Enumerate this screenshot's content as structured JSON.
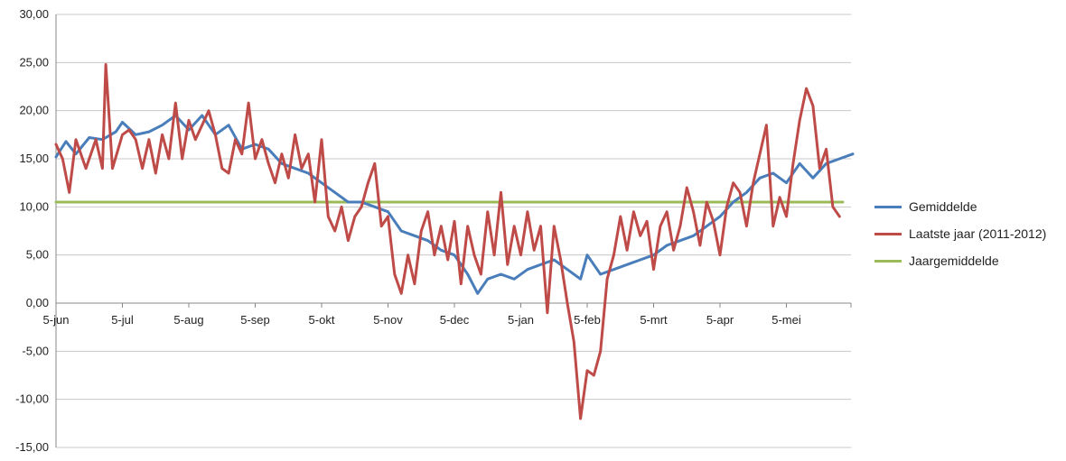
{
  "chart_data": {
    "type": "line",
    "categories": [
      "5-jun",
      "5-jul",
      "5-aug",
      "5-sep",
      "5-okt",
      "5-nov",
      "5-dec",
      "5-jan",
      "5-feb",
      "5-mrt",
      "5-apr",
      "5-mei"
    ],
    "y_ticks": [
      "30,00",
      "25,00",
      "20,00",
      "15,00",
      "10,00",
      "5,00",
      "0,00",
      "-5,00",
      "-10,00",
      "-15,00"
    ],
    "ylim": [
      -15,
      30
    ],
    "grid": true,
    "legend_position": "right",
    "series": [
      {
        "name": "Gemiddelde",
        "color": "#4a7ebb",
        "points": [
          [
            0,
            15.2
          ],
          [
            0.15,
            16.8
          ],
          [
            0.3,
            15.5
          ],
          [
            0.5,
            17.2
          ],
          [
            0.7,
            17.0
          ],
          [
            0.9,
            17.8
          ],
          [
            1.0,
            18.8
          ],
          [
            1.2,
            17.5
          ],
          [
            1.4,
            17.8
          ],
          [
            1.6,
            18.5
          ],
          [
            1.8,
            19.5
          ],
          [
            2.0,
            18.0
          ],
          [
            2.2,
            19.5
          ],
          [
            2.4,
            17.5
          ],
          [
            2.6,
            18.5
          ],
          [
            2.8,
            16.0
          ],
          [
            3.0,
            16.5
          ],
          [
            3.2,
            16.0
          ],
          [
            3.4,
            14.5
          ],
          [
            3.6,
            14.0
          ],
          [
            3.8,
            13.5
          ],
          [
            4.0,
            12.5
          ],
          [
            4.2,
            11.5
          ],
          [
            4.4,
            10.5
          ],
          [
            4.6,
            10.5
          ],
          [
            4.8,
            10.0
          ],
          [
            5.0,
            9.5
          ],
          [
            5.2,
            7.5
          ],
          [
            5.4,
            7.0
          ],
          [
            5.6,
            6.5
          ],
          [
            5.8,
            5.5
          ],
          [
            6.0,
            5.0
          ],
          [
            6.2,
            3.0
          ],
          [
            6.35,
            1.0
          ],
          [
            6.5,
            2.5
          ],
          [
            6.7,
            3.0
          ],
          [
            6.9,
            2.5
          ],
          [
            7.1,
            3.5
          ],
          [
            7.3,
            4.0
          ],
          [
            7.5,
            4.5
          ],
          [
            7.7,
            3.5
          ],
          [
            7.9,
            2.5
          ],
          [
            8.0,
            5.0
          ],
          [
            8.2,
            3.0
          ],
          [
            8.4,
            3.5
          ],
          [
            8.6,
            4.0
          ],
          [
            8.8,
            4.5
          ],
          [
            9.0,
            5.0
          ],
          [
            9.2,
            6.0
          ],
          [
            9.4,
            6.5
          ],
          [
            9.6,
            7.0
          ],
          [
            9.8,
            8.0
          ],
          [
            10.0,
            9.0
          ],
          [
            10.2,
            10.5
          ],
          [
            10.4,
            11.5
          ],
          [
            10.6,
            13.0
          ],
          [
            10.8,
            13.5
          ],
          [
            11.0,
            12.5
          ],
          [
            11.2,
            14.5
          ],
          [
            11.4,
            13.0
          ],
          [
            11.6,
            14.5
          ],
          [
            11.8,
            15.0
          ],
          [
            12.0,
            15.5
          ]
        ]
      },
      {
        "name": "Laatste jaar (2011-2012)",
        "color": "#be4b48",
        "points": [
          [
            0,
            16.5
          ],
          [
            0.1,
            15.0
          ],
          [
            0.2,
            11.5
          ],
          [
            0.3,
            17.0
          ],
          [
            0.45,
            14.0
          ],
          [
            0.6,
            17.0
          ],
          [
            0.7,
            14.0
          ],
          [
            0.75,
            24.8
          ],
          [
            0.85,
            14.0
          ],
          [
            1.0,
            17.5
          ],
          [
            1.1,
            18.0
          ],
          [
            1.2,
            17.0
          ],
          [
            1.3,
            14.0
          ],
          [
            1.4,
            17.0
          ],
          [
            1.5,
            13.5
          ],
          [
            1.6,
            17.5
          ],
          [
            1.7,
            15.0
          ],
          [
            1.8,
            20.8
          ],
          [
            1.9,
            15.0
          ],
          [
            2.0,
            19.0
          ],
          [
            2.1,
            17.0
          ],
          [
            2.2,
            18.5
          ],
          [
            2.3,
            20.0
          ],
          [
            2.4,
            17.5
          ],
          [
            2.5,
            14.0
          ],
          [
            2.6,
            13.5
          ],
          [
            2.7,
            17.0
          ],
          [
            2.8,
            15.5
          ],
          [
            2.9,
            20.8
          ],
          [
            3.0,
            15.0
          ],
          [
            3.1,
            17.0
          ],
          [
            3.2,
            14.5
          ],
          [
            3.3,
            12.5
          ],
          [
            3.4,
            15.5
          ],
          [
            3.5,
            13.0
          ],
          [
            3.6,
            17.5
          ],
          [
            3.7,
            14.0
          ],
          [
            3.8,
            15.5
          ],
          [
            3.9,
            10.5
          ],
          [
            4.0,
            17.0
          ],
          [
            4.1,
            9.0
          ],
          [
            4.2,
            7.5
          ],
          [
            4.3,
            10.0
          ],
          [
            4.4,
            6.5
          ],
          [
            4.5,
            9.0
          ],
          [
            4.6,
            10.0
          ],
          [
            4.7,
            12.5
          ],
          [
            4.8,
            14.5
          ],
          [
            4.9,
            8.0
          ],
          [
            5.0,
            9.0
          ],
          [
            5.1,
            3.0
          ],
          [
            5.2,
            1.0
          ],
          [
            5.3,
            5.0
          ],
          [
            5.4,
            2.0
          ],
          [
            5.5,
            7.5
          ],
          [
            5.6,
            9.5
          ],
          [
            5.7,
            5.0
          ],
          [
            5.8,
            8.0
          ],
          [
            5.9,
            4.5
          ],
          [
            6.0,
            8.5
          ],
          [
            6.1,
            2.0
          ],
          [
            6.2,
            8.0
          ],
          [
            6.3,
            5.0
          ],
          [
            6.4,
            3.0
          ],
          [
            6.5,
            9.5
          ],
          [
            6.6,
            5.0
          ],
          [
            6.7,
            11.5
          ],
          [
            6.8,
            4.0
          ],
          [
            6.9,
            8.0
          ],
          [
            7.0,
            5.0
          ],
          [
            7.1,
            9.5
          ],
          [
            7.2,
            5.5
          ],
          [
            7.3,
            8.0
          ],
          [
            7.4,
            -1.0
          ],
          [
            7.5,
            8.0
          ],
          [
            7.6,
            4.5
          ],
          [
            7.7,
            0.0
          ],
          [
            7.8,
            -4.0
          ],
          [
            7.9,
            -12.0
          ],
          [
            8.0,
            -7.0
          ],
          [
            8.1,
            -7.5
          ],
          [
            8.2,
            -5.0
          ],
          [
            8.3,
            2.5
          ],
          [
            8.4,
            5.0
          ],
          [
            8.5,
            9.0
          ],
          [
            8.6,
            5.5
          ],
          [
            8.7,
            9.5
          ],
          [
            8.8,
            7.0
          ],
          [
            8.9,
            8.5
          ],
          [
            9.0,
            3.5
          ],
          [
            9.1,
            8.0
          ],
          [
            9.2,
            9.5
          ],
          [
            9.3,
            5.5
          ],
          [
            9.4,
            8.0
          ],
          [
            9.5,
            12.0
          ],
          [
            9.6,
            9.5
          ],
          [
            9.7,
            6.0
          ],
          [
            9.8,
            10.5
          ],
          [
            9.9,
            8.5
          ],
          [
            10.0,
            5.0
          ],
          [
            10.1,
            10.0
          ],
          [
            10.2,
            12.5
          ],
          [
            10.3,
            11.5
          ],
          [
            10.4,
            8.0
          ],
          [
            10.5,
            12.5
          ],
          [
            10.6,
            15.5
          ],
          [
            10.7,
            18.5
          ],
          [
            10.8,
            8.0
          ],
          [
            10.9,
            11.0
          ],
          [
            11.0,
            9.0
          ],
          [
            11.1,
            14.5
          ],
          [
            11.2,
            19.0
          ],
          [
            11.3,
            22.3
          ],
          [
            11.4,
            20.5
          ],
          [
            11.5,
            14.0
          ],
          [
            11.6,
            16.0
          ],
          [
            11.7,
            10.0
          ],
          [
            11.8,
            9.0
          ]
        ]
      },
      {
        "name": "Jaargemiddelde",
        "color": "#9bbb59",
        "points": [
          [
            0,
            10.5
          ],
          [
            11.85,
            10.5
          ]
        ]
      }
    ]
  }
}
